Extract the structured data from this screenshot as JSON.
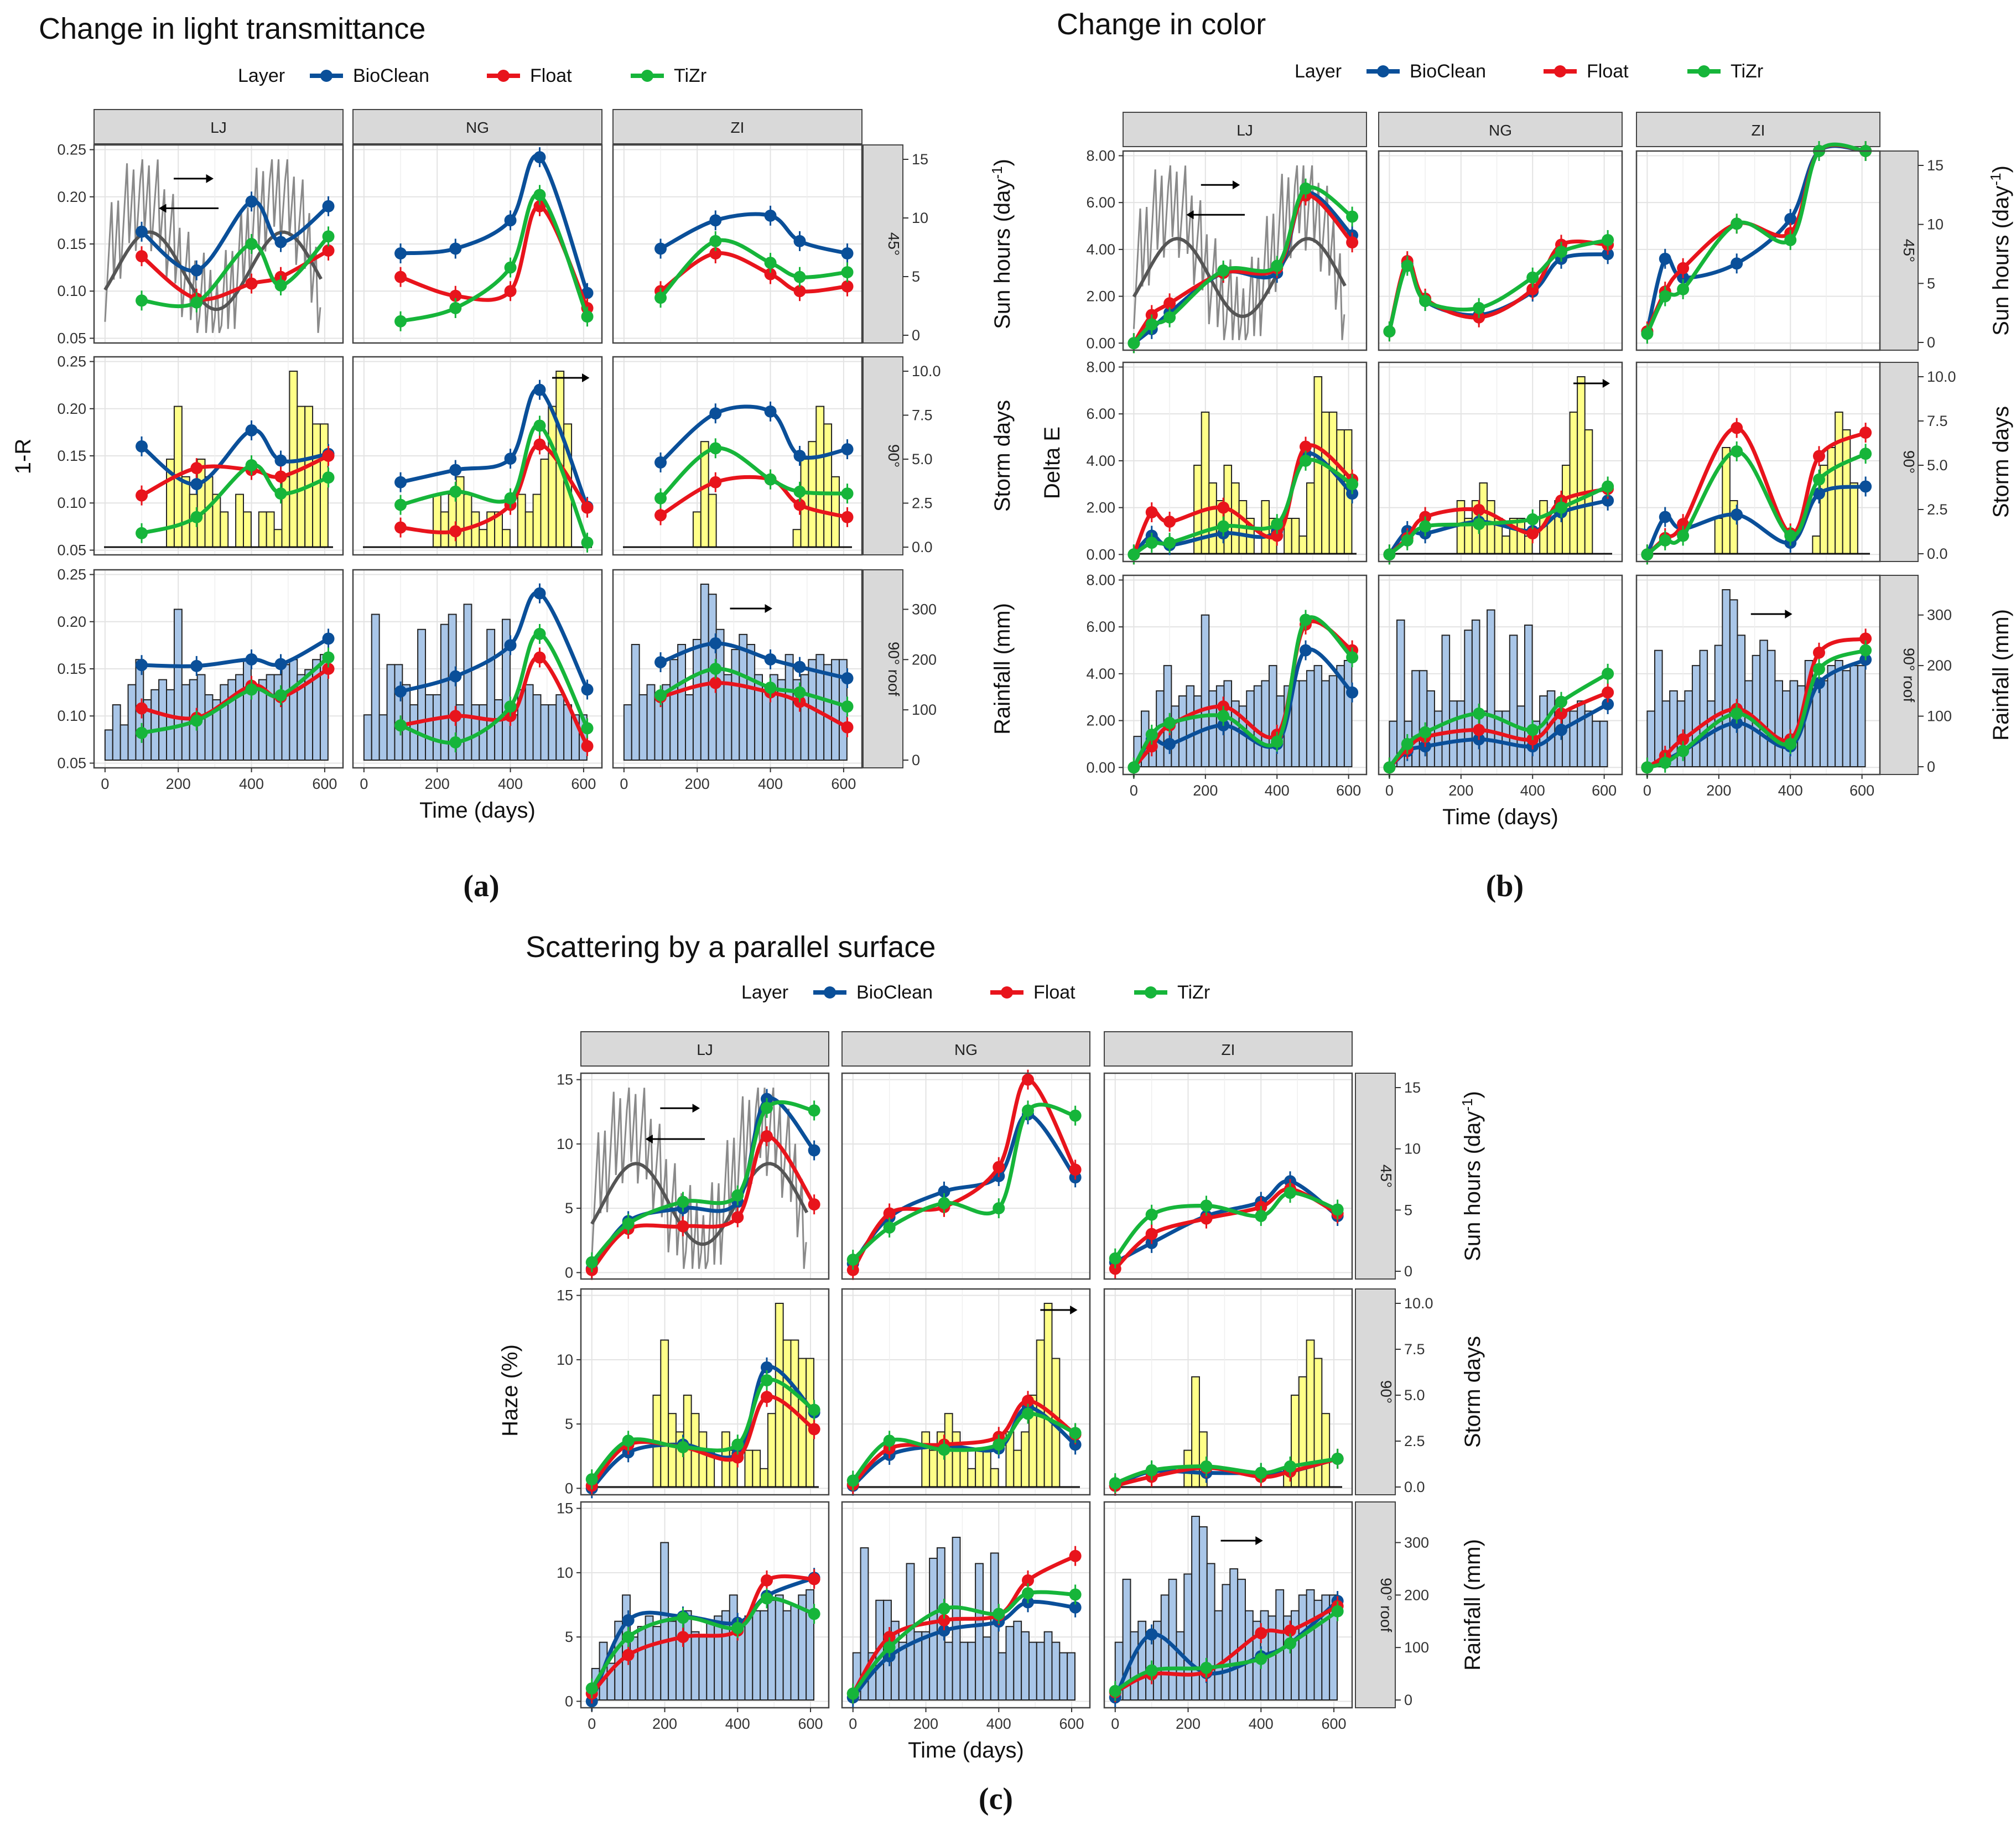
{
  "colors": {
    "BioClean": "#0a4f99",
    "Float": "#e8141c",
    "TiZr": "#16b53a",
    "sun": "#8a8a8a",
    "sun_smooth": "#555555",
    "storm_bar": "#ffff88",
    "rain_bar": "#a9c6e8",
    "strip_bg": "#d9d9d9"
  },
  "legend": {
    "title": "Layer",
    "entries": [
      "BioClean",
      "Float",
      "TiZr"
    ]
  },
  "columns": [
    "LJ",
    "NG",
    "ZI"
  ],
  "rows": [
    "45°",
    "90°",
    "90° roof"
  ],
  "secondary_axes": {
    "45°": {
      "label": "Sun hours (day",
      "sup": "-1",
      "close": ")",
      "ticks": [
        "0",
        "5",
        "10",
        "15"
      ],
      "max": 15
    },
    "90°": {
      "label": "Storm days",
      "ticks": [
        "0.0",
        "2.5",
        "5.0",
        "7.5",
        "10.0"
      ],
      "max": 10
    },
    "90° roof": {
      "label": "Rainfall (mm)",
      "ticks": [
        "0",
        "100",
        "200",
        "300"
      ],
      "max": 350
    }
  },
  "x_axis": {
    "label": "Time (days)",
    "ticks": [
      "0",
      "200",
      "400",
      "600"
    ]
  },
  "climate": {
    "storm": {
      "LJ": [
        0,
        0,
        0,
        0,
        0,
        0,
        0,
        0,
        5,
        8,
        4,
        3,
        5,
        4,
        3,
        2,
        0,
        3,
        2,
        0,
        2,
        2,
        1,
        4,
        10,
        8,
        8,
        7,
        7
      ],
      "NG": [
        0,
        0,
        0,
        0,
        0,
        0,
        0,
        0,
        0,
        3,
        2,
        3,
        4,
        3,
        2,
        1,
        2,
        2,
        1,
        0,
        3,
        2,
        3,
        5,
        8,
        10,
        7,
        0,
        0
      ],
      "ZI": [
        0,
        0,
        0,
        0,
        0,
        0,
        0,
        0,
        0,
        2,
        6,
        3,
        0,
        0,
        0,
        0,
        0,
        0,
        0,
        0,
        0,
        0,
        1,
        5,
        6,
        8,
        7,
        4,
        0
      ]
    },
    "rain": {
      "LJ": [
        60,
        110,
        70,
        150,
        200,
        120,
        140,
        160,
        140,
        300,
        150,
        160,
        170,
        130,
        120,
        150,
        160,
        170,
        200,
        140,
        160,
        170,
        170,
        190,
        200,
        170,
        180,
        200,
        210
      ],
      "NG": [
        90,
        290,
        90,
        190,
        190,
        150,
        110,
        260,
        130,
        130,
        270,
        290,
        110,
        310,
        110,
        110,
        260,
        120,
        280,
        90,
        140,
        150,
        130,
        110,
        110,
        130,
        110,
        90,
        90
      ],
      "ZI": [
        110,
        230,
        130,
        150,
        130,
        150,
        200,
        230,
        130,
        240,
        380,
        330,
        260,
        170,
        220,
        250,
        230,
        170,
        150,
        170,
        160,
        210,
        160,
        170,
        200,
        210,
        190,
        200,
        200
      ]
    }
  },
  "chart_data": [
    {
      "type": "line",
      "panel_label": "(a)",
      "title": "Change in light transmittance",
      "ylabel": "1-R",
      "xlabel": "Time (days)",
      "xlim": [
        -30,
        650
      ],
      "ylim": [
        0.045,
        0.255
      ],
      "yticks": [
        "0.05",
        "0.10",
        "0.15",
        "0.20",
        "0.25"
      ],
      "x": [
        0,
        100,
        250,
        400,
        480,
        610
      ],
      "series": {
        "45°": {
          "LJ": {
            "BioClean": [
              null,
              0.163,
              0.122,
              0.195,
              0.152,
              0.19
            ],
            "Float": [
              null,
              0.137,
              0.092,
              0.108,
              0.115,
              0.143
            ],
            "TiZr": [
              null,
              0.09,
              0.088,
              0.15,
              0.106,
              0.158
            ]
          },
          "NG": {
            "BioClean": [
              null,
              0.14,
              0.145,
              0.175,
              0.242,
              0.098
            ],
            "Float": [
              null,
              0.115,
              0.095,
              0.1,
              0.19,
              0.082
            ],
            "TiZr": [
              null,
              0.068,
              0.082,
              0.125,
              0.202,
              0.073
            ]
          },
          "ZI": {
            "BioClean": [
              null,
              0.145,
              0.175,
              0.18,
              0.153,
              0.14
            ],
            "Float": [
              null,
              0.1,
              0.14,
              0.118,
              0.1,
              0.105
            ],
            "TiZr": [
              null,
              0.093,
              0.153,
              0.13,
              0.115,
              0.12
            ]
          }
        },
        "90°": {
          "LJ": {
            "BioClean": [
              null,
              0.16,
              0.12,
              0.177,
              0.145,
              0.152
            ],
            "Float": [
              null,
              0.108,
              0.137,
              0.135,
              0.128,
              0.15
            ],
            "TiZr": [
              null,
              0.068,
              0.085,
              0.14,
              0.11,
              0.127
            ]
          },
          "NG": {
            "BioClean": [
              null,
              0.122,
              0.135,
              0.147,
              0.22,
              0.096
            ],
            "Float": [
              null,
              0.074,
              0.07,
              0.098,
              0.162,
              0.095
            ],
            "TiZr": [
              null,
              0.098,
              0.112,
              0.105,
              0.182,
              0.058
            ]
          },
          "ZI": {
            "BioClean": [
              null,
              0.143,
              0.195,
              0.197,
              0.15,
              0.157
            ],
            "Float": [
              null,
              0.087,
              0.122,
              0.125,
              0.098,
              0.085
            ],
            "TiZr": [
              null,
              0.105,
              0.158,
              0.125,
              0.112,
              0.11
            ]
          }
        },
        "90° roof": {
          "LJ": {
            "BioClean": [
              null,
              0.154,
              0.153,
              0.16,
              0.155,
              0.182
            ],
            "Float": [
              null,
              0.108,
              0.098,
              0.132,
              0.12,
              0.15
            ],
            "TiZr": [
              null,
              0.082,
              0.095,
              0.128,
              0.122,
              0.162
            ]
          },
          "NG": {
            "BioClean": [
              null,
              0.126,
              0.142,
              0.175,
              0.23,
              0.128
            ],
            "Float": [
              null,
              0.09,
              0.1,
              0.1,
              0.162,
              0.068
            ],
            "TiZr": [
              null,
              0.09,
              0.072,
              0.11,
              0.187,
              0.087
            ]
          },
          "ZI": {
            "BioClean": [
              null,
              0.157,
              0.177,
              0.16,
              0.152,
              0.14
            ],
            "Float": [
              null,
              0.12,
              0.135,
              0.125,
              0.115,
              0.088
            ],
            "TiZr": [
              null,
              0.122,
              0.15,
              0.13,
              0.125,
              0.11
            ]
          }
        }
      }
    },
    {
      "type": "line",
      "panel_label": "(b)",
      "title": "Change in color",
      "ylabel": "Delta E",
      "xlabel": "Time (days)",
      "xlim": [
        -30,
        650
      ],
      "ylim": [
        -0.3,
        8.2
      ],
      "yticks": [
        "0.00",
        "2.00",
        "4.00",
        "6.00",
        "8.00"
      ],
      "x": [
        0,
        50,
        100,
        250,
        400,
        480,
        610
      ],
      "series": {
        "45°": {
          "LJ": {
            "BioClean": [
              0,
              0.6,
              1.3,
              3,
              3,
              6.4,
              4.6
            ],
            "Float": [
              0,
              1.2,
              1.7,
              3,
              3.2,
              6.3,
              4.3
            ],
            "TiZr": [
              0,
              0.8,
              1.1,
              3.1,
              3.3,
              6.6,
              5.4
            ]
          },
          "NG": {
            "BioClean": [
              0.5,
              3.4,
              1.8,
              1.2,
              2.2,
              3.6,
              3.8
            ],
            "Float": [
              0.5,
              3.5,
              1.9,
              1.1,
              2.3,
              4.2,
              4.2
            ],
            "TiZr": [
              0.5,
              3.3,
              1.8,
              1.5,
              2.8,
              3.9,
              4.4
            ]
          },
          "ZI": {
            "BioClean": [
              0.5,
              3.6,
              2.8,
              3.4,
              5.3,
              10.8,
              13.2
            ],
            "Float": [
              0.5,
              2.2,
              3.2,
              5.1,
              4.7,
              10.9,
              13.6
            ],
            "TiZr": [
              0.4,
              2.0,
              2.3,
              5.1,
              4.4,
              10.6,
              14.1
            ]
          }
        },
        "90°": {
          "LJ": {
            "BioClean": [
              0,
              0.8,
              0.4,
              0.9,
              1.0,
              4.3,
              2.6
            ],
            "Float": [
              0,
              1.8,
              1.4,
              2.0,
              0.8,
              4.6,
              3.2
            ],
            "TiZr": [
              0,
              0.5,
              0.5,
              1.2,
              1.3,
              4.0,
              3.0
            ]
          },
          "NG": {
            "BioClean": [
              0,
              1.0,
              0.9,
              1.4,
              1.0,
              1.8,
              2.3
            ],
            "Float": [
              0,
              0.7,
              1.6,
              1.9,
              0.9,
              2.3,
              2.8
            ],
            "TiZr": [
              0,
              0.6,
              1.2,
              1.3,
              1.5,
              2.0,
              2.9
            ]
          },
          "ZI": {
            "BioClean": [
              0,
              1.6,
              1.1,
              1.7,
              0.5,
              2.6,
              2.9
            ],
            "Float": [
              0,
              0.7,
              1.3,
              5.4,
              0.9,
              4.2,
              5.2
            ],
            "TiZr": [
              0,
              0.6,
              0.8,
              4.4,
              0.8,
              3.2,
              4.3
            ]
          }
        },
        "90° roof": {
          "LJ": {
            "BioClean": [
              0,
              1.2,
              1.0,
              1.8,
              1.0,
              5.0,
              3.2
            ],
            "Float": [
              0,
              0.9,
              1.8,
              2.6,
              1.4,
              6.1,
              5.0
            ],
            "TiZr": [
              0,
              1.4,
              1.9,
              2.2,
              1.1,
              6.3,
              4.7
            ]
          },
          "NG": {
            "BioClean": [
              0,
              0.7,
              0.9,
              1.2,
              0.9,
              1.6,
              2.7
            ],
            "Float": [
              0,
              0.8,
              1.3,
              1.6,
              1.2,
              2.3,
              3.2
            ],
            "TiZr": [
              0,
              1.0,
              1.5,
              2.3,
              1.6,
              2.8,
              4.0
            ]
          },
          "ZI": {
            "BioClean": [
              0,
              0.3,
              0.7,
              1.9,
              0.9,
              3.6,
              4.6
            ],
            "Float": [
              0,
              0.5,
              1.2,
              2.5,
              1.2,
              4.9,
              5.5
            ],
            "TiZr": [
              0,
              0.2,
              0.7,
              2.3,
              1.0,
              4.2,
              5.0
            ]
          }
        }
      }
    },
    {
      "type": "line",
      "panel_label": "(c)",
      "title": "Scattering by a parallel surface",
      "ylabel": "Haze (%)",
      "xlabel": "Time (days)",
      "xlim": [
        -30,
        650
      ],
      "ylim": [
        -0.5,
        15.5
      ],
      "yticks": [
        "0",
        "5",
        "10",
        "15"
      ],
      "x": [
        0,
        100,
        250,
        400,
        480,
        610
      ],
      "series": {
        "45°": {
          "LJ": {
            "BioClean": [
              0.3,
              4.0,
              5.0,
              5.5,
              13.5,
              9.5
            ],
            "Float": [
              0.2,
              3.4,
              3.6,
              4.3,
              10.6,
              5.3
            ],
            "TiZr": [
              0.8,
              3.8,
              5.5,
              6.0,
              12.8,
              12.6
            ]
          },
          "NG": {
            "BioClean": [
              0.7,
              4.3,
              6.3,
              7.5,
              12.3,
              7.4
            ],
            "Float": [
              0.2,
              4.6,
              5.1,
              8.2,
              15.0,
              8.0
            ],
            "TiZr": [
              1.0,
              3.5,
              5.4,
              5.0,
              12.6,
              12.2
            ]
          },
          "ZI": {
            "BioClean": [
              0.8,
              2.3,
              4.4,
              5.5,
              7.1,
              4.4
            ],
            "Float": [
              0.3,
              3.0,
              4.2,
              5.1,
              6.5,
              4.6
            ],
            "TiZr": [
              1.1,
              4.5,
              5.2,
              4.4,
              6.2,
              4.9
            ]
          }
        },
        "90°": {
          "LJ": {
            "BioClean": [
              0,
              2.8,
              3.4,
              2.7,
              9.4,
              5.9
            ],
            "Float": [
              0.2,
              3.4,
              3.2,
              2.4,
              7.1,
              4.6
            ],
            "TiZr": [
              0.7,
              3.7,
              3.2,
              3.4,
              8.4,
              6.1
            ]
          },
          "NG": {
            "BioClean": [
              0.2,
              2.6,
              3.3,
              3.1,
              6.3,
              3.4
            ],
            "Float": [
              0.3,
              3.1,
              3.4,
              4.0,
              6.8,
              4.2
            ],
            "TiZr": [
              0.6,
              3.7,
              3.0,
              3.4,
              5.8,
              4.3
            ]
          },
          "ZI": {
            "BioClean": [
              0.2,
              1.3,
              1.2,
              1.2,
              1.3,
              2.3
            ],
            "Float": [
              0.2,
              0.9,
              1.6,
              0.9,
              1.3,
              2.3
            ],
            "TiZr": [
              0.4,
              1.4,
              1.7,
              1.2,
              1.7,
              2.3
            ]
          }
        },
        "90° roof": {
          "LJ": {
            "BioClean": [
              0,
              6.3,
              6.6,
              6.1,
              8.2,
              9.6
            ],
            "Float": [
              0.6,
              3.6,
              5.0,
              5.5,
              9.4,
              9.5
            ],
            "TiZr": [
              1.0,
              5.0,
              6.5,
              5.7,
              8.0,
              6.8
            ]
          },
          "NG": {
            "BioClean": [
              0.3,
              3.5,
              5.5,
              6.2,
              7.7,
              7.3
            ],
            "Float": [
              0.6,
              5.0,
              6.3,
              6.7,
              9.4,
              11.3
            ],
            "TiZr": [
              0.6,
              4.2,
              7.2,
              6.8,
              8.4,
              8.3
            ]
          },
          "ZI": {
            "BioClean": [
              0.3,
              5.2,
              2.2,
              3.5,
              4.5,
              7.8
            ],
            "Float": [
              0.7,
              2.1,
              2.3,
              5.3,
              5.5,
              7.4
            ],
            "TiZr": [
              0.8,
              2.4,
              2.6,
              3.3,
              4.5,
              7.0
            ]
          }
        }
      }
    }
  ]
}
